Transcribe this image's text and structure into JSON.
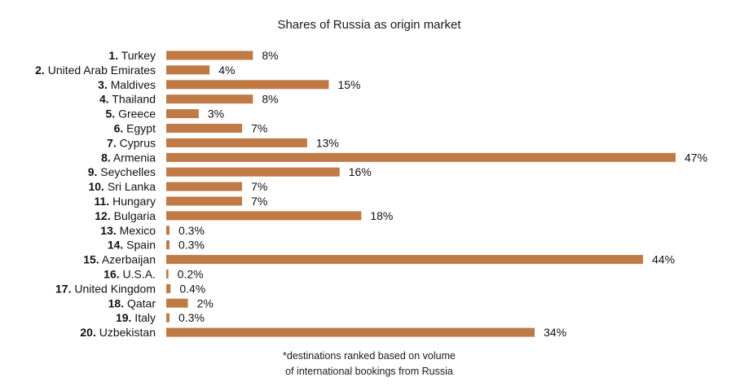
{
  "chart_data": {
    "type": "bar",
    "orientation": "horizontal",
    "title": "Shares of Russia as origin market",
    "ranks": [
      "1.",
      "2.",
      "3.",
      "4.",
      "5.",
      "6.",
      "7.",
      "8.",
      "9.",
      "10.",
      "11.",
      "12.",
      "13.",
      "14.",
      "15.",
      "16.",
      "17.",
      "18.",
      "19.",
      "20."
    ],
    "categories": [
      "Turkey",
      "United Arab Emirates",
      "Maldives",
      "Thailand",
      "Greece",
      "Egypt",
      "Cyprus",
      "Armenia",
      "Seychelles",
      "Sri Lanka",
      "Hungary",
      "Bulgaria",
      "Mexico",
      "Spain",
      "Azerbaijan",
      "U.S.A.",
      "United Kingdom",
      "Qatar",
      "Italy",
      "Uzbekistan"
    ],
    "values": [
      8,
      4,
      15,
      8,
      3,
      7,
      13,
      47,
      16,
      7,
      7,
      18,
      0.3,
      0.3,
      44,
      0.2,
      0.4,
      2,
      0.3,
      34
    ],
    "value_labels": [
      "8%",
      "4%",
      "15%",
      "8%",
      "3%",
      "7%",
      "13%",
      "47%",
      "16%",
      "7%",
      "7%",
      "18%",
      "0.3%",
      "0.3%",
      "44%",
      "0.2%",
      "0.4%",
      "2%",
      "0.3%",
      "34%"
    ],
    "xlim": [
      0,
      47
    ],
    "bar_color": "#c07a45",
    "grid": false,
    "footnote": [
      "*destinations ranked based on volume",
      "of international bookings from Russia"
    ]
  }
}
